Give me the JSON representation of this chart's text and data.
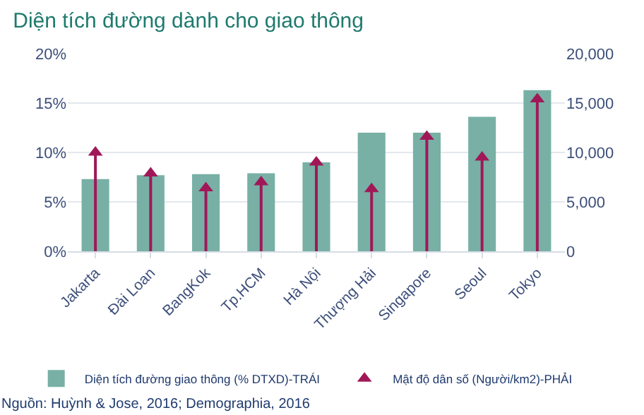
{
  "chart_data": {
    "type": "bar",
    "title": "Diện tích đường dành cho giao thông",
    "categories": [
      "Jakarta",
      "Đài Loan",
      "BangKok",
      "Tp.HCM",
      "Hà Nội",
      "Thượng Hải",
      "Singapore",
      "Seoul",
      "Tokyo"
    ],
    "series": [
      {
        "name": "Diện tích đường giao thông (% DTXD)-TRÁI",
        "color": "#78b0a5",
        "values": [
          7.3,
          7.7,
          7.8,
          7.9,
          9.0,
          12.0,
          12.0,
          13.6,
          16.3
        ]
      },
      {
        "name": "Mật độ dân số (Người/km2)-PHẢI",
        "type": "lollipop",
        "axis": "y2",
        "marker": "triangle",
        "color": "#a01858",
        "values": [
          10000,
          7900,
          6400,
          7000,
          9000,
          6300,
          11600,
          9500,
          15400
        ]
      }
    ],
    "ylim": [
      0,
      20
    ],
    "yticks": [
      {
        "value": 0,
        "label": "0%"
      },
      {
        "value": 5,
        "label": "5%"
      },
      {
        "value": 10,
        "label": "10%"
      },
      {
        "value": 15,
        "label": "15%"
      },
      {
        "value": 20,
        "label": "20%"
      }
    ],
    "y2lim": [
      0,
      20000
    ],
    "y2ticks": [
      {
        "value": 0,
        "label": "0"
      },
      {
        "value": 5000,
        "label": "5,000"
      },
      {
        "value": 10000,
        "label": "10,000"
      },
      {
        "value": 15000,
        "label": "15,000"
      },
      {
        "value": 20000,
        "label": "20,000"
      }
    ],
    "grid": "y",
    "legend": "bottom",
    "annotations": [
      "Nguồn: Huỳnh & Jose, 2016; Demographia, 2016"
    ]
  }
}
